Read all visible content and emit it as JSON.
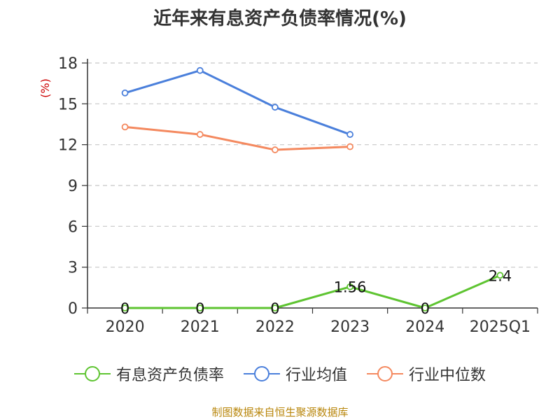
{
  "title": "近年来有息资产负债率情况(%)",
  "source": "制图数据来自恒生聚源数据库",
  "chart_data": {
    "type": "line",
    "ylabel": "(%)",
    "ylim": [
      0,
      18
    ],
    "yticks": [
      0,
      3,
      6,
      9,
      12,
      15,
      18
    ],
    "categories": [
      "2020",
      "2021",
      "2022",
      "2023",
      "2024",
      "2025Q1"
    ],
    "grid": "horizontal dashed",
    "legend_position": "bottom",
    "series": [
      {
        "name": "有息资产负债率",
        "color": "#5ec431",
        "values": [
          0,
          0,
          0,
          1.56,
          0,
          2.4
        ],
        "labels": [
          "0",
          "0",
          "0",
          "1.56",
          "0",
          "2.4"
        ]
      },
      {
        "name": "行业均值",
        "color": "#4a7fdb",
        "values": [
          15.8,
          17.45,
          14.75,
          12.75,
          null,
          null
        ]
      },
      {
        "name": "行业中位数",
        "color": "#f4895f",
        "values": [
          13.3,
          12.75,
          11.62,
          11.85,
          null,
          null
        ]
      }
    ]
  }
}
